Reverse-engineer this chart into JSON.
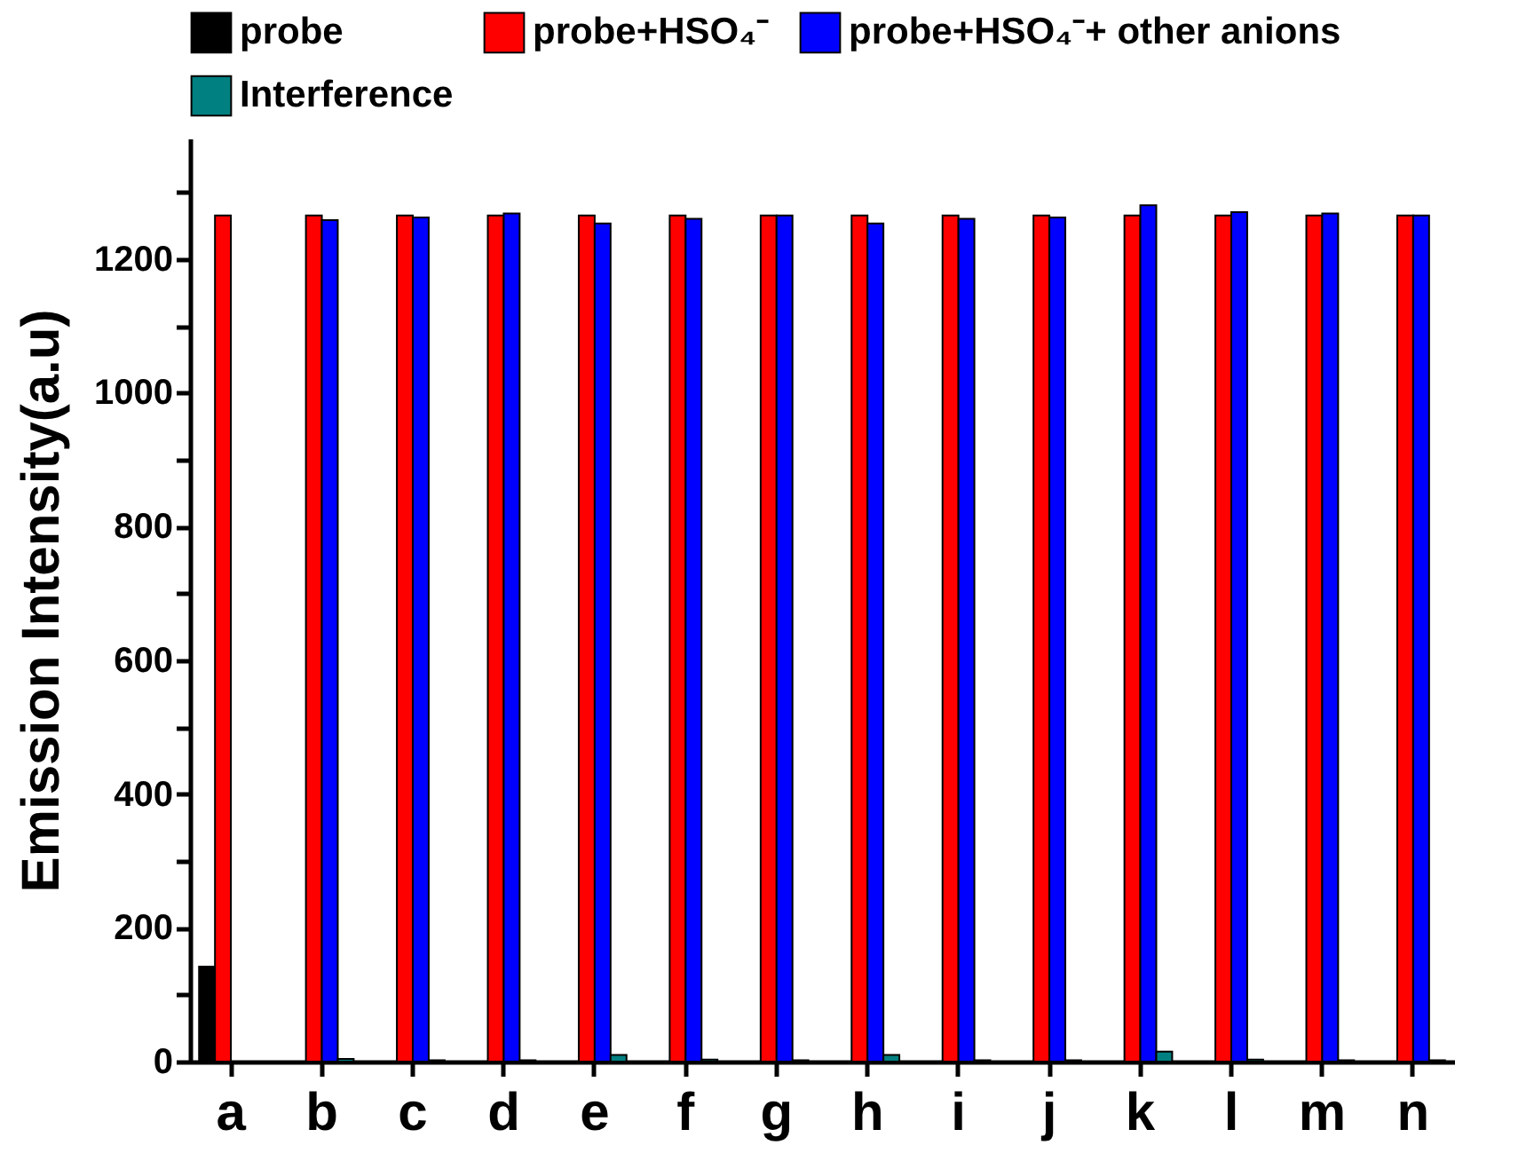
{
  "chart_data": {
    "type": "bar",
    "ylabel": "Emission Intensity(a.u)",
    "categories": [
      "a",
      "b",
      "c",
      "d",
      "e",
      "f",
      "g",
      "h",
      "i",
      "j",
      "k",
      "l",
      "m",
      "n"
    ],
    "series": [
      {
        "name": "probe",
        "color": "#000000",
        "values": [
          142,
          null,
          null,
          null,
          null,
          null,
          null,
          null,
          null,
          null,
          null,
          null,
          null,
          null
        ]
      },
      {
        "name": "probe+HSO₄⁻",
        "color": "#ff0000",
        "values": [
          1265,
          1265,
          1265,
          1265,
          1265,
          1265,
          1265,
          1265,
          1265,
          1265,
          1265,
          1265,
          1265,
          1265
        ]
      },
      {
        "name": "probe+HSO₄⁻+ other anions",
        "color": "#0000ff",
        "values": [
          null,
          1258,
          1262,
          1268,
          1253,
          1260,
          1265,
          1253,
          1260,
          1262,
          1280,
          1270,
          1268,
          1265
        ]
      },
      {
        "name": "Interference",
        "color": "#008080",
        "values": [
          null,
          4,
          2,
          2,
          10,
          3,
          2,
          10,
          2,
          2,
          15,
          3,
          2,
          2
        ]
      }
    ],
    "ylim": [
      0,
      1380
    ],
    "yticks": [
      0,
      {
        "value": 100,
        "label": null
      },
      200,
      {
        "value": 300,
        "label": null
      },
      400,
      {
        "value": 500,
        "label": null
      },
      600,
      {
        "value": 700,
        "label": null
      },
      800,
      {
        "value": 900,
        "label": null
      },
      1000,
      {
        "value": 1100,
        "label": null
      },
      1200,
      {
        "value": 1300,
        "label": null
      }
    ],
    "grid": false,
    "legend": "top"
  }
}
